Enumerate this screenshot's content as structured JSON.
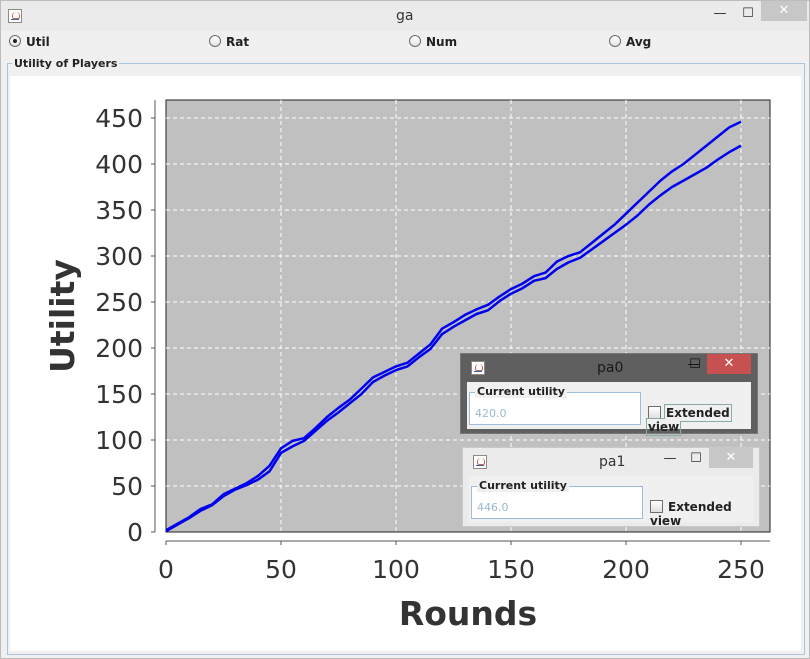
{
  "window": {
    "title": "ga",
    "min_glyph": "—",
    "max_glyph": "☐",
    "close_glyph": "✕"
  },
  "radios": [
    {
      "label": "Util",
      "selected": true
    },
    {
      "label": "Rat",
      "selected": false
    },
    {
      "label": "Num",
      "selected": false
    },
    {
      "label": "Avg",
      "selected": false
    }
  ],
  "panel": {
    "title": "Utility of Players"
  },
  "chart_data": {
    "type": "line",
    "xlabel": "Rounds",
    "ylabel": "Utility",
    "xlim": [
      0,
      250
    ],
    "ylim": [
      0,
      450
    ],
    "x_ticks": [
      "0",
      "50",
      "100",
      "150",
      "200",
      "250"
    ],
    "y_ticks": [
      "0",
      "50",
      "100",
      "150",
      "200",
      "250",
      "300",
      "350",
      "400",
      "450"
    ],
    "grid": true,
    "background": "#c0c0c0",
    "series": [
      {
        "color": "#0000ee",
        "x": [
          0,
          5,
          10,
          15,
          20,
          25,
          30,
          35,
          40,
          45,
          50,
          55,
          60,
          65,
          70,
          75,
          80,
          85,
          90,
          95,
          100,
          105,
          110,
          115,
          120,
          125,
          130,
          135,
          140,
          145,
          150,
          155,
          160,
          165,
          170,
          175,
          180,
          185,
          190,
          195,
          200,
          205,
          210,
          215,
          220,
          225,
          230,
          235,
          240,
          245,
          250
        ],
        "y": [
          2,
          9,
          16,
          25,
          30,
          41,
          47,
          53,
          61,
          72,
          91,
          99,
          102,
          113,
          125,
          135,
          144,
          156,
          168,
          174,
          180,
          184,
          194,
          204,
          221,
          228,
          236,
          242,
          247,
          256,
          264,
          270,
          278,
          282,
          294,
          300,
          304,
          314,
          324,
          334,
          346,
          358,
          370,
          382,
          392,
          400,
          410,
          420,
          430,
          440,
          446
        ]
      },
      {
        "color": "#0000ee",
        "x": [
          0,
          5,
          10,
          15,
          20,
          25,
          30,
          35,
          40,
          45,
          50,
          55,
          60,
          65,
          70,
          75,
          80,
          85,
          90,
          95,
          100,
          105,
          110,
          115,
          120,
          125,
          130,
          135,
          140,
          145,
          150,
          155,
          160,
          165,
          170,
          175,
          180,
          185,
          190,
          195,
          200,
          205,
          210,
          215,
          220,
          225,
          230,
          235,
          240,
          245,
          250
        ],
        "y": [
          1,
          8,
          15,
          23,
          29,
          39,
          46,
          51,
          57,
          66,
          86,
          93,
          99,
          110,
          121,
          130,
          140,
          150,
          163,
          170,
          176,
          180,
          190,
          199,
          215,
          223,
          230,
          237,
          241,
          251,
          259,
          265,
          273,
          276,
          286,
          293,
          298,
          307,
          316,
          325,
          334,
          344,
          356,
          366,
          375,
          382,
          389,
          396,
          405,
          413,
          420
        ]
      }
    ]
  },
  "subwindows": [
    {
      "title": "pa0",
      "field_label": "Current utility",
      "field_value": "420.0",
      "checkbox_label": "Extended view",
      "active": true
    },
    {
      "title": "pa1",
      "field_label": "Current utility",
      "field_value": "446.0",
      "checkbox_label": "Extended view",
      "active": false
    }
  ]
}
